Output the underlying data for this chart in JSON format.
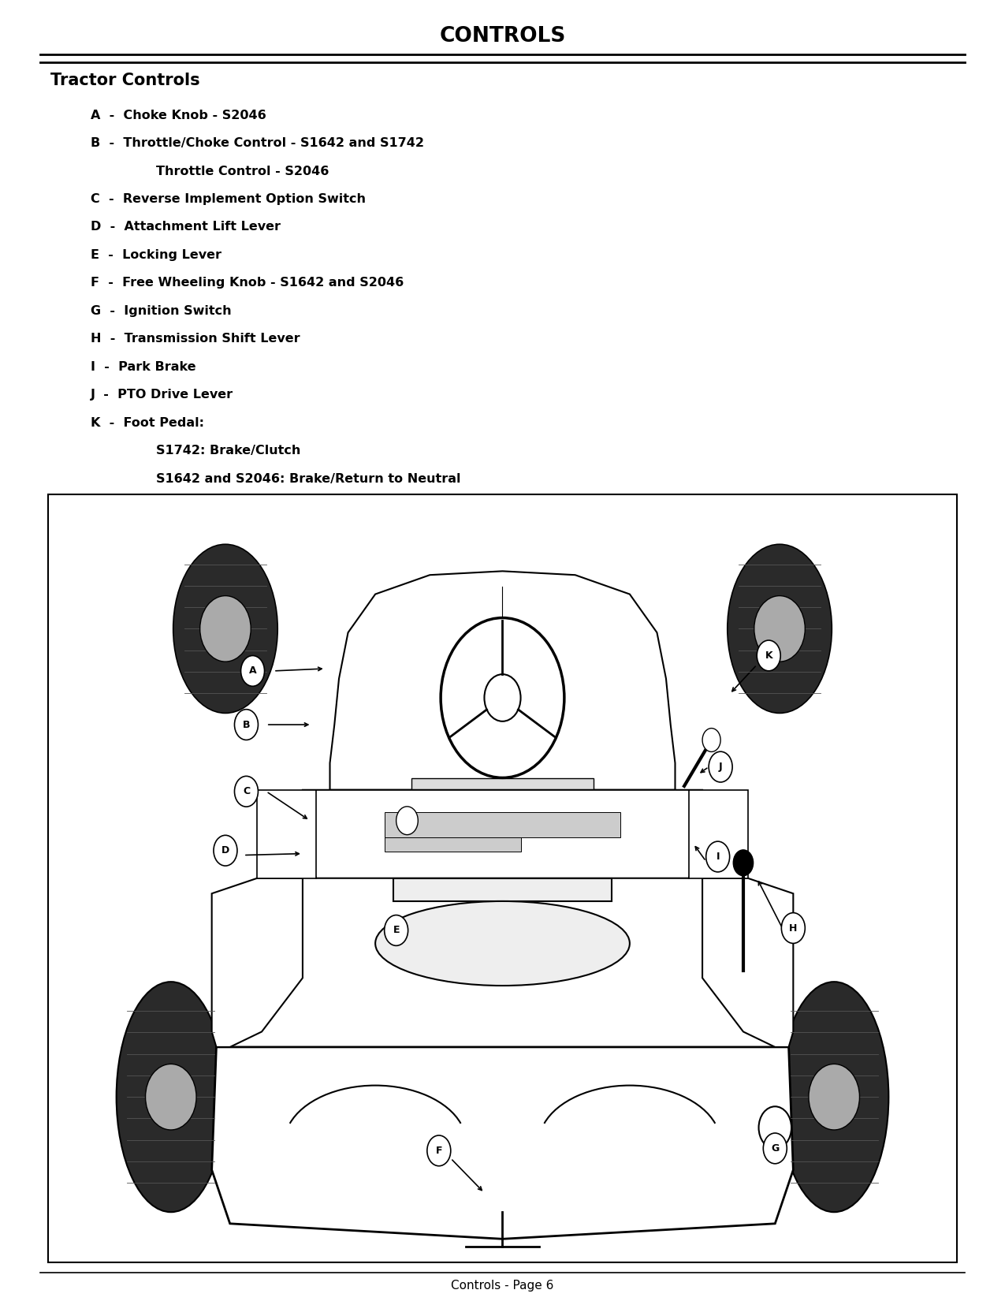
{
  "title": "CONTROLS",
  "section_header": "Tractor Controls",
  "items": [
    {
      "letter": "A",
      "text": "Choke Knob - S2046"
    },
    {
      "letter": "B",
      "text1": "Throttle/Choke Control - S1642 and S1742",
      "text2": "Throttle Control - S2046"
    },
    {
      "letter": "C",
      "text": "Reverse Implement Option Switch"
    },
    {
      "letter": "D",
      "text": "Attachment Lift Lever"
    },
    {
      "letter": "E",
      "text": "Locking Lever"
    },
    {
      "letter": "F",
      "text": "Free Wheeling Knob - S1642 and S2046"
    },
    {
      "letter": "G",
      "text": "Ignition Switch"
    },
    {
      "letter": "H",
      "text": "Transmission Shift Lever"
    },
    {
      "letter": "I",
      "text": "Park Brake"
    },
    {
      "letter": "J",
      "text": "PTO Drive Lever"
    },
    {
      "letter": "K",
      "text1": "Foot Pedal:",
      "text2": "S1742: Brake/Clutch",
      "text3": "S1642 and S2046: Brake/Return to Neutral"
    }
  ],
  "footer": "Controls - Page 6",
  "bg_color": "#ffffff",
  "text_color": "#000000",
  "title_fontsize": 19,
  "header_fontsize": 15,
  "item_fontsize": 11.5,
  "footer_fontsize": 11
}
